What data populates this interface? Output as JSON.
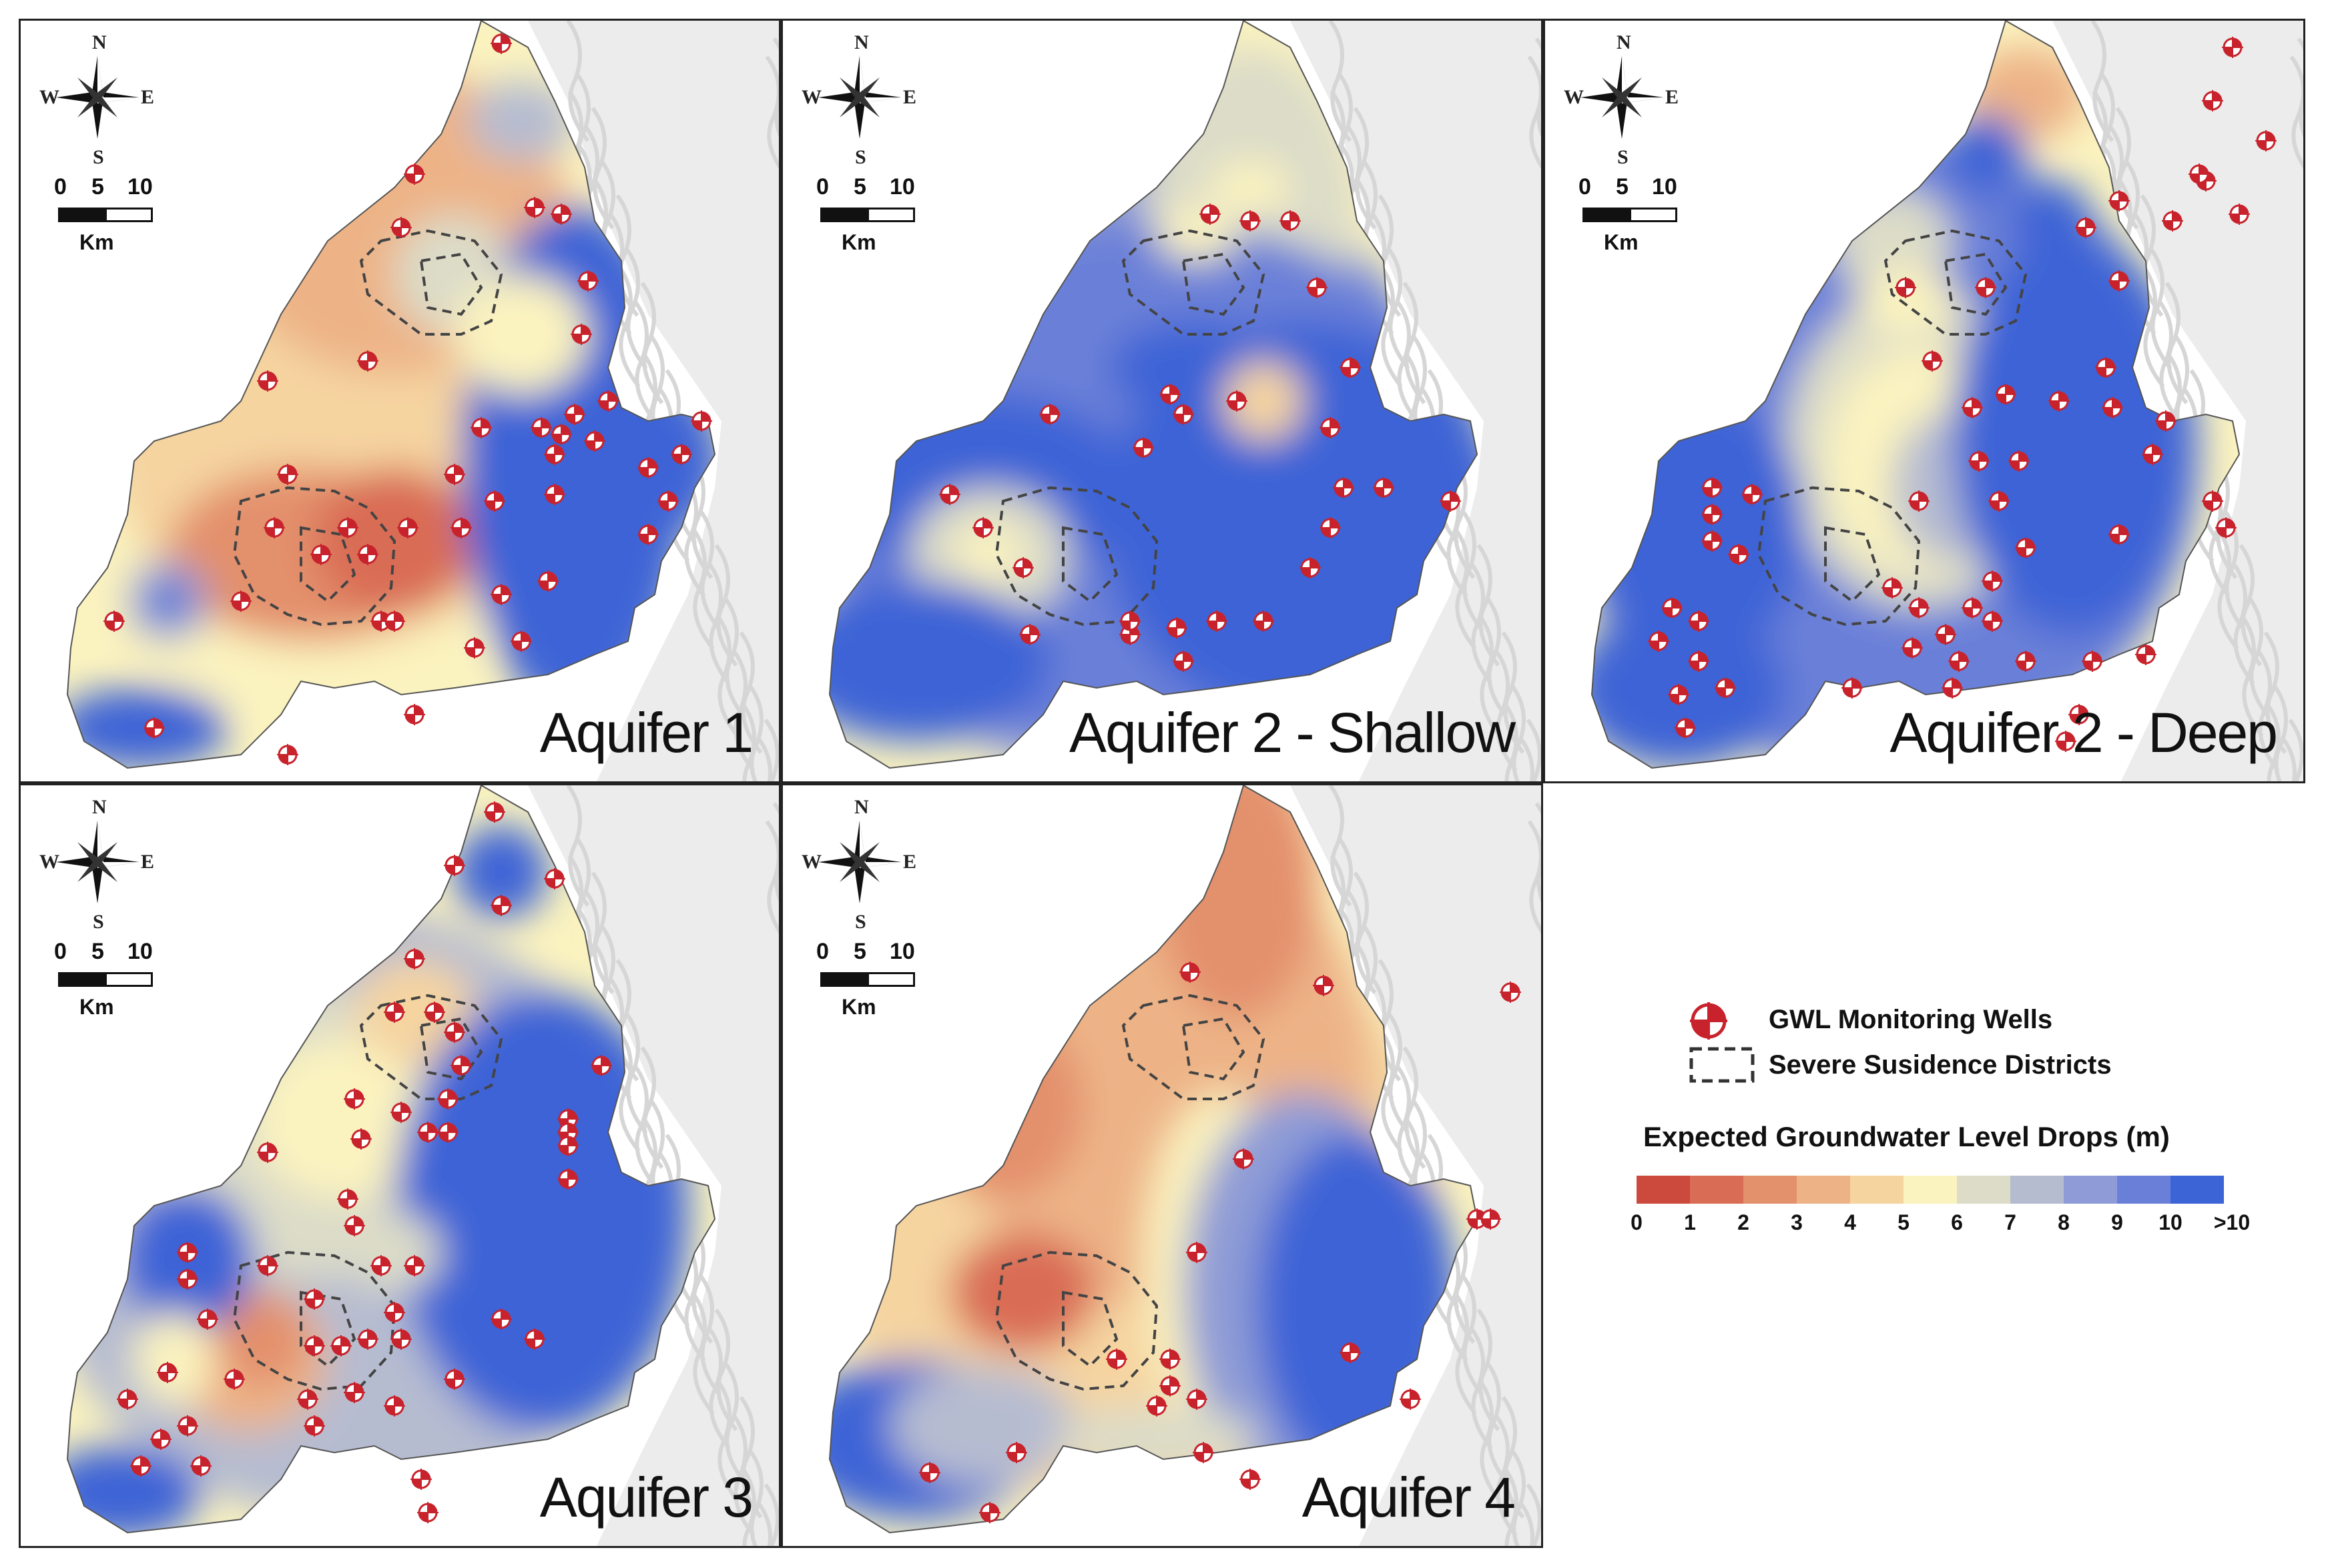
{
  "colors": {
    "scale": [
      "#cc4a3d",
      "#d96c55",
      "#e3906c",
      "#edb387",
      "#f5d4a0",
      "#fbf3bf",
      "#dcdcc8",
      "#b6bcd0",
      "#8e9bd6",
      "#6a80d8",
      "#3d64d6"
    ],
    "well": "#c8232c",
    "hillshade": "#e9e9e9",
    "boundary": "#555555"
  },
  "panels": [
    {
      "title": "Aquifer 1"
    },
    {
      "title": "Aquifer 2 - Shallow"
    },
    {
      "title": "Aquifer 2 - Deep"
    },
    {
      "title": "Aquifer 3"
    },
    {
      "title": "Aquifer 4"
    }
  ],
  "compass": {
    "n": "N",
    "s": "S",
    "e": "E",
    "w": "W"
  },
  "scalebar": {
    "ticks": [
      "0",
      "5",
      "10"
    ],
    "unit": "Km"
  },
  "legend": {
    "wells_label": "GWL Monitoring Wells",
    "districts_label": "Severe Susidence Districts",
    "colorbar_title": "Expected Groundwater Level Drops (m)",
    "tick_labels": [
      "0",
      "1",
      "2",
      "3",
      "4",
      "5",
      "6",
      "7",
      "8",
      "9",
      "10",
      ">10"
    ]
  }
}
